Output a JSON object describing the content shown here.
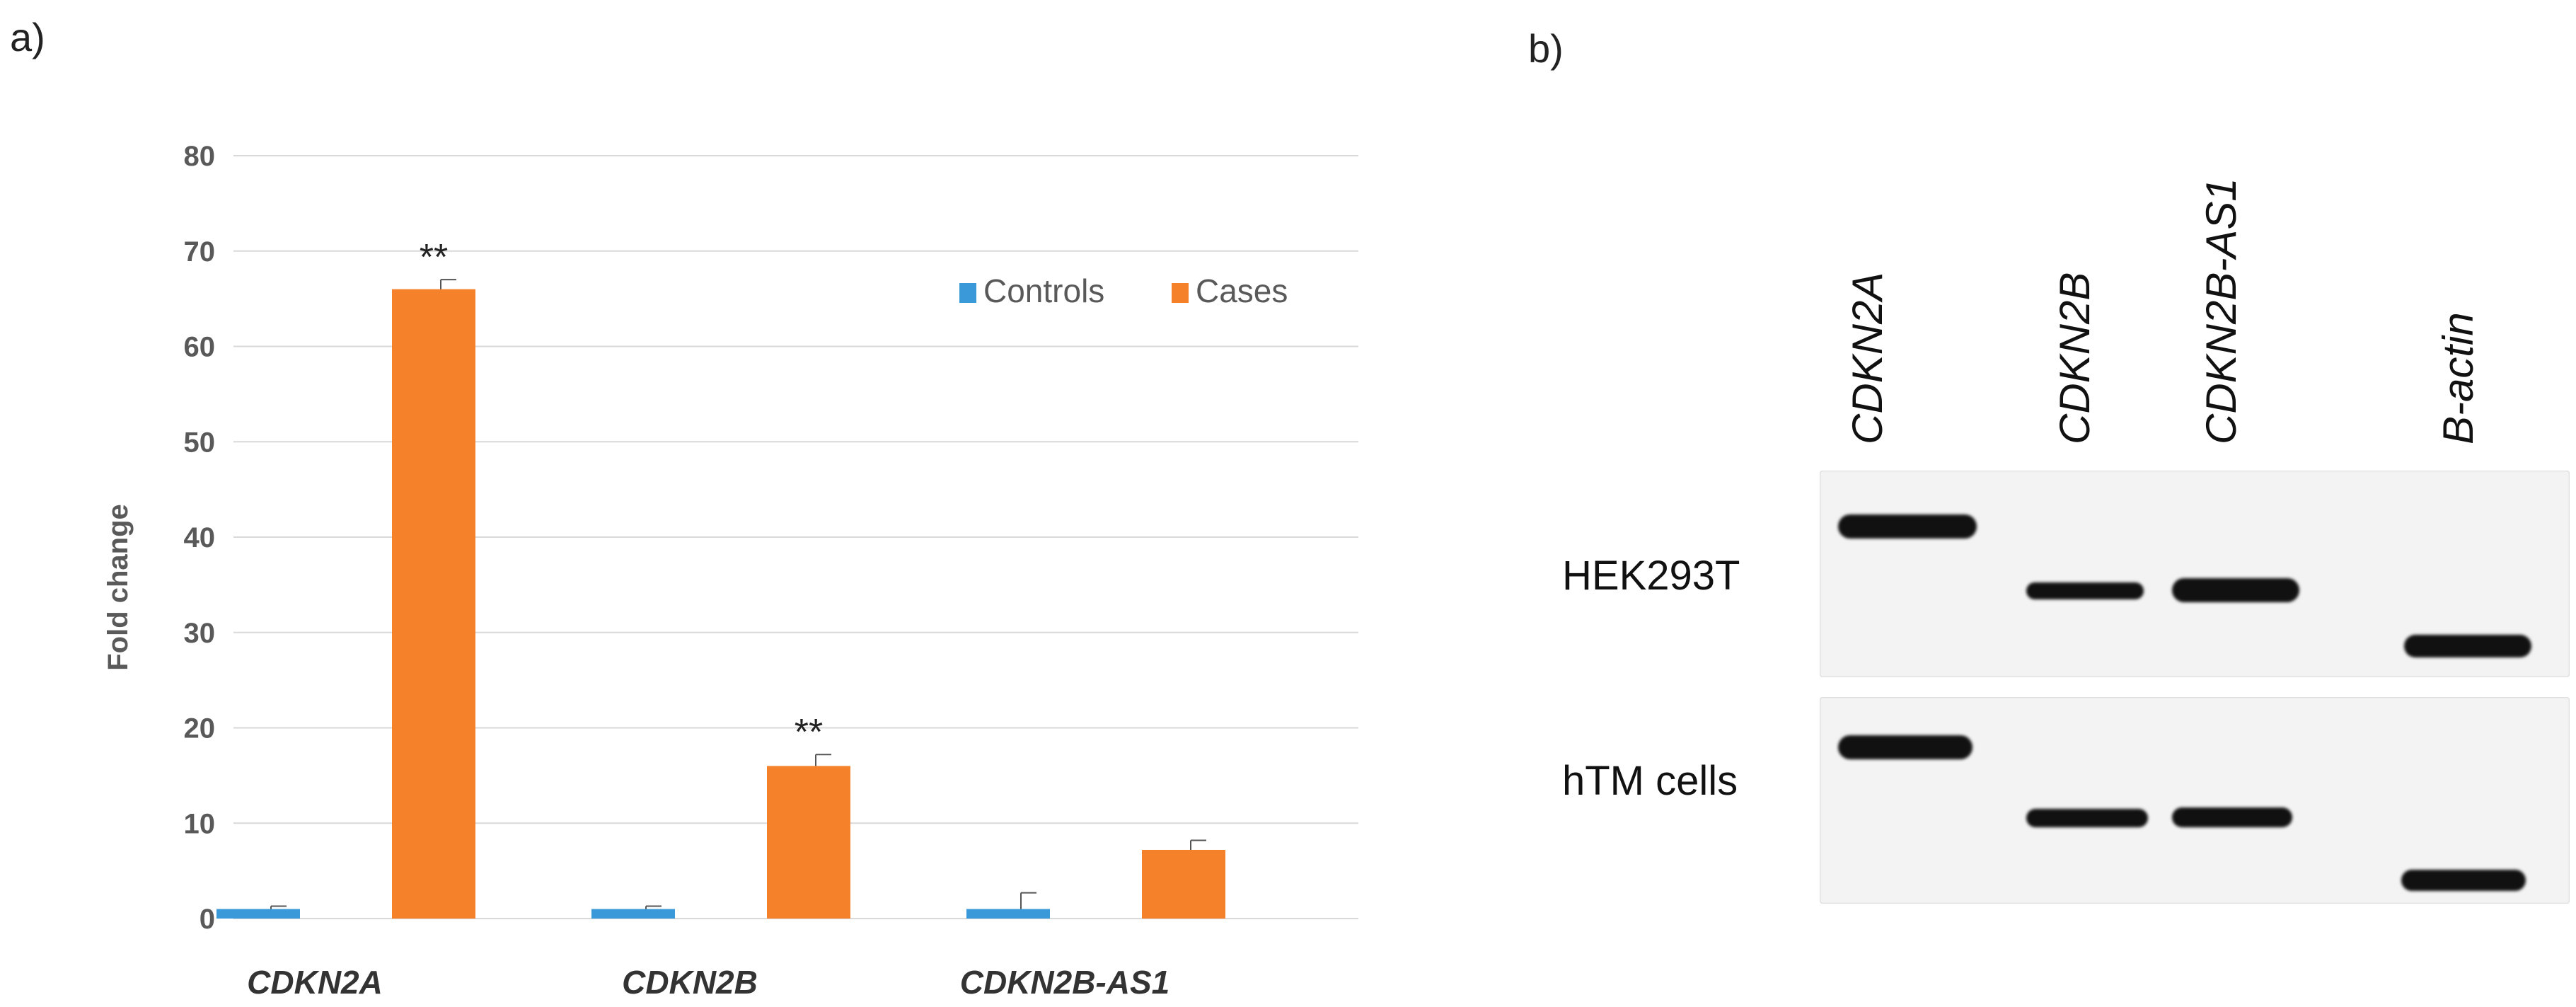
{
  "panel_a": {
    "letter": "a)"
  },
  "panel_b": {
    "letter": "b)"
  },
  "chart_data": {
    "type": "bar",
    "title": "",
    "xlabel": "",
    "ylabel": "Fold change",
    "ylim": [
      0,
      80
    ],
    "yticks": [
      0,
      10,
      20,
      30,
      40,
      50,
      60,
      70,
      80
    ],
    "grid": true,
    "legend_position": "top-right",
    "categories": [
      "CDKN2A",
      "CDKN2B",
      "CDKN2B-AS1"
    ],
    "series": [
      {
        "name": "Controls",
        "color": "#3A9AD9",
        "values": [
          1,
          1,
          1
        ],
        "errors": [
          0.3,
          0.3,
          1.7
        ]
      },
      {
        "name": "Cases",
        "color": "#F5812A",
        "values": [
          66,
          16,
          7.2
        ],
        "errors": [
          1.0,
          1.2,
          1.0
        ]
      }
    ],
    "annotations": [
      "**",
      "**",
      ""
    ]
  },
  "gel": {
    "lanes": [
      "CDKN2A",
      "CDKN2B",
      "CDKN2B-AS1",
      "B-actin"
    ],
    "rows": [
      "HEK293T",
      "hTM cells"
    ]
  },
  "colors": {
    "controls": "#3A9AD9",
    "cases": "#F5812A",
    "grid": "#D9D9D9"
  }
}
